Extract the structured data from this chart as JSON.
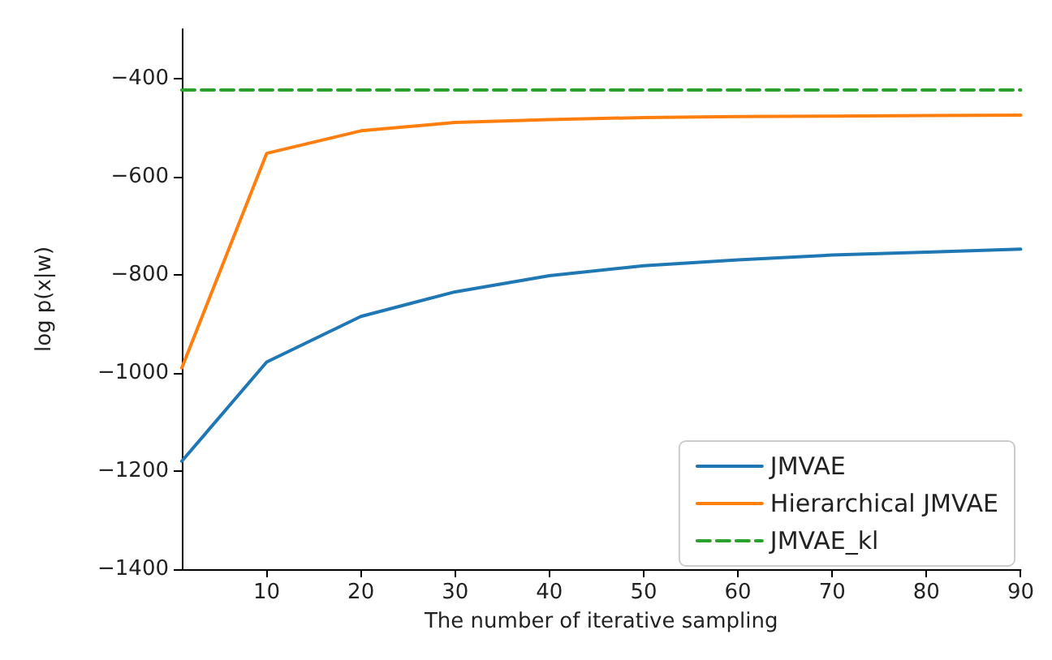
{
  "chart_data": {
    "type": "line",
    "xlabel": "The number of iterative sampling",
    "ylabel": "log p(x|w)",
    "x": [
      1,
      10,
      20,
      30,
      40,
      50,
      60,
      70,
      80,
      90
    ],
    "series": [
      {
        "name": "JMVAE",
        "color": "#1f77b4",
        "values": [
          -1180,
          -978,
          -885,
          -835,
          -802,
          -782,
          -770,
          -760,
          -754,
          -748
        ]
      },
      {
        "name": "Hierarchical JMVAE",
        "color": "#ff7f0e",
        "values": [
          -990,
          -553,
          -507,
          -490,
          -484,
          -480,
          -478,
          -477,
          -476,
          -475
        ]
      },
      {
        "name": "JMVAE_kl",
        "color": "#2ca02c",
        "line_style": "dashed",
        "x": [
          1,
          90
        ],
        "values": [
          -424,
          -424
        ]
      }
    ],
    "xlim": [
      1,
      90
    ],
    "xticks": [
      10,
      20,
      30,
      40,
      50,
      60,
      70,
      80,
      90
    ],
    "ylim": [
      -1400,
      -300
    ],
    "yticks": [
      -1400,
      -1200,
      -1000,
      -800,
      -600,
      -400
    ],
    "grid": false,
    "legend": "bottom right",
    "marker": "none",
    "line_style": "solid"
  }
}
